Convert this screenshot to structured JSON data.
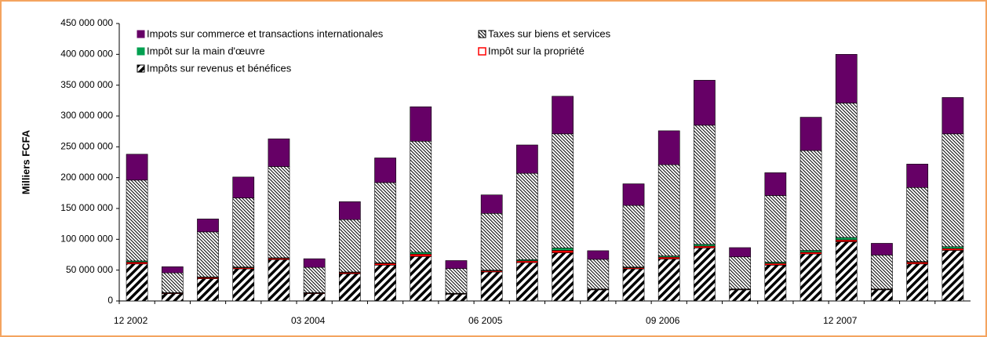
{
  "chart_data": {
    "type": "stacked-bar",
    "y_label": "Milliers FCFA",
    "categories": [
      "12 2002",
      null,
      null,
      null,
      null,
      "03 2004",
      null,
      null,
      null,
      null,
      "06 2005",
      null,
      null,
      null,
      null,
      "09 2006",
      null,
      null,
      null,
      null,
      "12 2007",
      null,
      null,
      null
    ],
    "series": [
      {
        "name": "Impots sur commerce et transactions internationales",
        "color": "#660066",
        "values": [
          42000000,
          10000000,
          21000000,
          34000000,
          45000000,
          14000000,
          29000000,
          40000000,
          56000000,
          13000000,
          30000000,
          46000000,
          61000000,
          14000000,
          35000000,
          55000000,
          73000000,
          15000000,
          37000000,
          54000000,
          79000000,
          19000000,
          38000000,
          59000000
        ]
      },
      {
        "name": "Taxes sur biens et services",
        "color": "#000000",
        "hatch": "fine",
        "values": [
          131000000,
          32000000,
          73000000,
          112000000,
          148000000,
          41000000,
          85000000,
          130000000,
          180000000,
          40000000,
          92000000,
          140000000,
          185000000,
          48000000,
          100000000,
          148000000,
          193000000,
          52000000,
          108000000,
          162000000,
          218000000,
          55000000,
          120000000,
          183000000
        ]
      },
      {
        "name": "Impôt sur la main d'œuvre",
        "color": "#00a050",
        "values": [
          2000000,
          500000,
          1000000,
          1000000,
          1000000,
          500000,
          1000000,
          1000000,
          3000000,
          500000,
          1000000,
          2000000,
          4000000,
          500000,
          1000000,
          2000000,
          3000000,
          500000,
          2000000,
          3000000,
          4000000,
          500000,
          1000000,
          3000000
        ]
      },
      {
        "name": "Impôt sur la propriété",
        "color": "#ff0000",
        "values": [
          3000000,
          1000000,
          2000000,
          2000000,
          2000000,
          1000000,
          2000000,
          3000000,
          4000000,
          1000000,
          2000000,
          3000000,
          4000000,
          1000000,
          2000000,
          3000000,
          3000000,
          1000000,
          3000000,
          3000000,
          3000000,
          1000000,
          3000000,
          3000000
        ]
      },
      {
        "name": "Impôts sur revenus et bénéfices",
        "color": "#000000",
        "hatch": "wide",
        "values": [
          60000000,
          12000000,
          36000000,
          52000000,
          67000000,
          12000000,
          44000000,
          58000000,
          72000000,
          11000000,
          47000000,
          62000000,
          78000000,
          18000000,
          52000000,
          68000000,
          86000000,
          18000000,
          58000000,
          76000000,
          96000000,
          18000000,
          60000000,
          82000000
        ]
      }
    ],
    "ylim": [
      0,
      450000000
    ],
    "yticks": [
      {
        "value": 0,
        "label": "0"
      },
      {
        "value": 50000000,
        "label": "50 000 000"
      },
      {
        "value": 100000000,
        "label": "100 000 000"
      },
      {
        "value": 150000000,
        "label": "150 000 000"
      },
      {
        "value": 200000000,
        "label": "200 000 000"
      },
      {
        "value": 250000000,
        "label": "250 000 000"
      },
      {
        "value": 300000000,
        "label": "300 000 000"
      },
      {
        "value": 350000000,
        "label": "350 000 000"
      },
      {
        "value": 400000000,
        "label": "400 000 000"
      },
      {
        "value": 450000000,
        "label": "450 000 000"
      }
    ]
  }
}
